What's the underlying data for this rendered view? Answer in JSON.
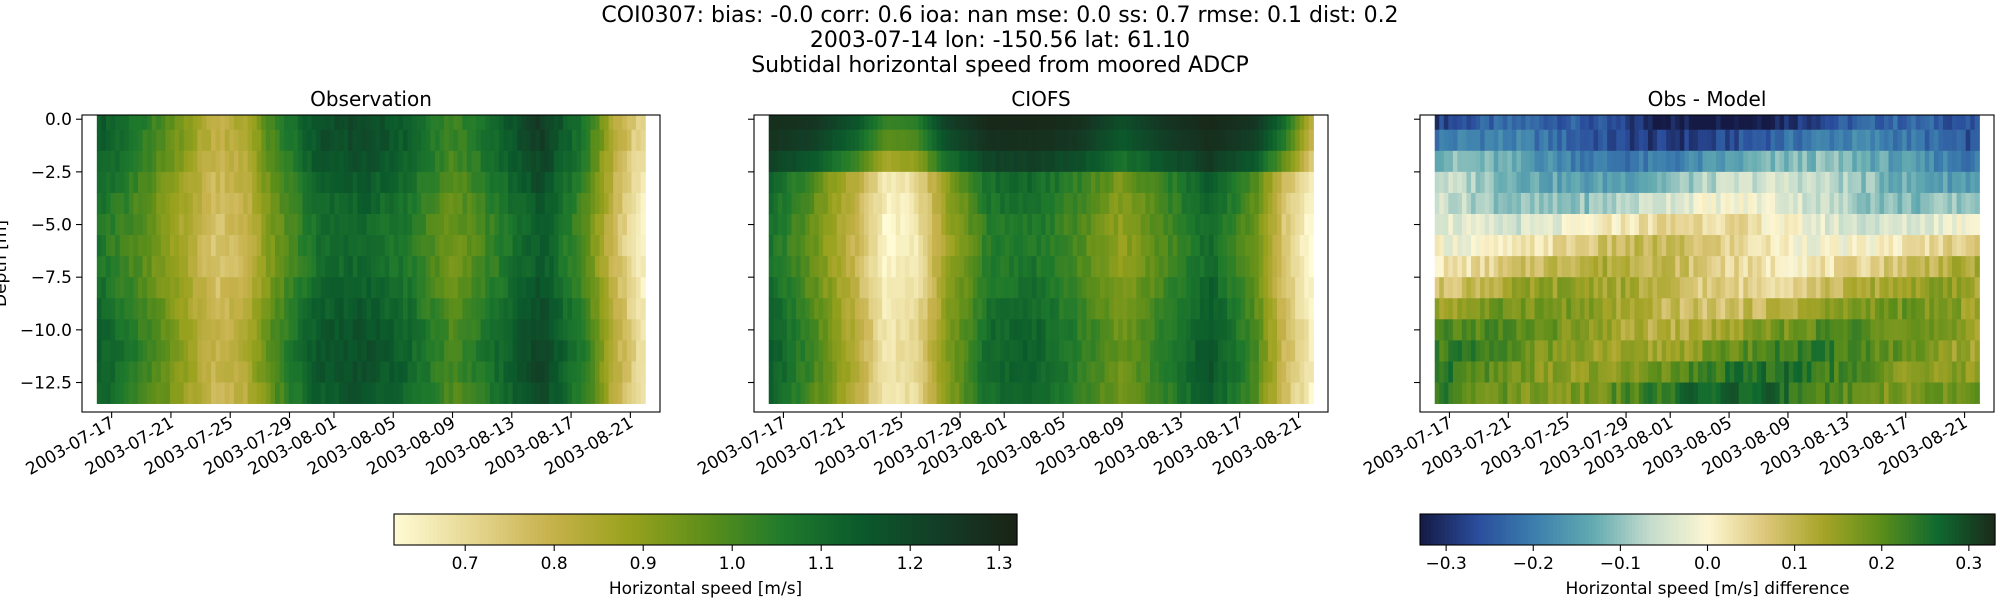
{
  "header": {
    "line1": "COI0307: bias: -0.0  corr: 0.6  ioa: nan  mse: 0.0  ss: 0.7  rmse: 0.1  dist: 0.2",
    "line2": "2003-07-14 lon: -150.56 lat: 61.10",
    "line3": "Subtidal horizontal speed from moored ADCP"
  },
  "colors": {
    "speed_cmap": [
      "#fffbd5",
      "#e6d792",
      "#c7b24c",
      "#9aa21e",
      "#5d8e1a",
      "#1f7a2c",
      "#0b5a2c",
      "#133d26",
      "#1a2316"
    ],
    "diff_cmap": [
      "#151a44",
      "#2a4d9c",
      "#3c7fae",
      "#62aab0",
      "#c4dccd",
      "#fdf6d2",
      "#dcc77a",
      "#a7a528",
      "#5d8e1a",
      "#0f6a30",
      "#1b2a1a"
    ]
  },
  "chart_data": [
    {
      "type": "heatmap",
      "title": "Observation",
      "ylabel": "Depth [m]",
      "x_start": "2003-07-15",
      "x_end": "2003-08-23",
      "ylim": [
        -13.9,
        0.2
      ],
      "yticks": [
        0.0,
        -2.5,
        -5.0,
        -7.5,
        -10.0,
        -12.5
      ],
      "ytick_labels": [
        "0.0",
        "−2.5",
        "−5.0",
        "−7.5",
        "−10.0",
        "−12.5"
      ],
      "xtick_labels": [
        "2003-07-17",
        "2003-07-21",
        "2003-07-25",
        "2003-07-29",
        "2003-08-01",
        "2003-08-05",
        "2003-08-09",
        "2003-08-13",
        "2003-08-17",
        "2003-08-21"
      ],
      "xticks": [
        "2003-07-17",
        "2003-07-21",
        "2003-07-25",
        "2003-07-29",
        "2003-08-01",
        "2003-08-05",
        "2003-08-09",
        "2003-08-13",
        "2003-08-17",
        "2003-08-21"
      ],
      "data_start": "2003-07-16",
      "data_end": "2003-08-22",
      "depths": [
        0.0,
        -1.0,
        -2.0,
        -3.0,
        -4.0,
        -5.0,
        -6.0,
        -7.0,
        -8.0,
        -9.0,
        -10.0,
        -11.0,
        -12.0,
        -13.0
      ],
      "time_profile_dates": [
        "2003-07-16",
        "2003-07-19",
        "2003-07-22",
        "2003-07-24",
        "2003-07-26",
        "2003-07-28",
        "2003-07-31",
        "2003-08-03",
        "2003-08-06",
        "2003-08-09",
        "2003-08-12",
        "2003-08-15",
        "2003-08-18",
        "2003-08-20",
        "2003-08-22"
      ],
      "time_profile_values": [
        1.12,
        1.02,
        0.88,
        0.78,
        0.82,
        0.98,
        1.14,
        1.16,
        1.1,
        0.98,
        1.08,
        1.2,
        1.02,
        0.8,
        0.66
      ],
      "vmin": 0.62,
      "vmax": 1.32
    },
    {
      "type": "heatmap",
      "title": "CIOFS",
      "x_start": "2003-07-15",
      "x_end": "2003-08-23",
      "ylim": [
        -13.9,
        0.2
      ],
      "yticks": [
        0.0,
        -2.5,
        -5.0,
        -7.5,
        -10.0,
        -12.5
      ],
      "xtick_labels": [
        "2003-07-17",
        "2003-07-21",
        "2003-07-25",
        "2003-07-29",
        "2003-08-01",
        "2003-08-05",
        "2003-08-09",
        "2003-08-13",
        "2003-08-17",
        "2003-08-21"
      ],
      "xticks": [
        "2003-07-17",
        "2003-07-21",
        "2003-07-25",
        "2003-07-29",
        "2003-08-01",
        "2003-08-05",
        "2003-08-09",
        "2003-08-13",
        "2003-08-17",
        "2003-08-21"
      ],
      "data_start": "2003-07-16",
      "data_end": "2003-08-22",
      "depths": [
        0.0,
        -1.0,
        -2.0,
        -3.0,
        -4.0,
        -5.0,
        -6.0,
        -7.0,
        -8.0,
        -9.0,
        -10.0,
        -11.0,
        -12.0,
        -13.0
      ],
      "time_profile_dates": [
        "2003-07-16",
        "2003-07-19",
        "2003-07-22",
        "2003-07-24",
        "2003-07-26",
        "2003-07-28",
        "2003-07-31",
        "2003-08-03",
        "2003-08-06",
        "2003-08-09",
        "2003-08-12",
        "2003-08-15",
        "2003-08-18",
        "2003-08-20",
        "2003-08-22"
      ],
      "time_profile_values": [
        1.14,
        1.0,
        0.82,
        0.66,
        0.7,
        0.9,
        1.1,
        1.12,
        1.04,
        0.94,
        1.04,
        1.16,
        1.0,
        0.78,
        0.64
      ],
      "surface_values": [
        1.28,
        1.26,
        1.16,
        1.02,
        1.04,
        1.22,
        1.3,
        1.3,
        1.28,
        1.18,
        1.26,
        1.3,
        1.26,
        1.1,
        0.8
      ],
      "vmin": 0.62,
      "vmax": 1.32
    },
    {
      "type": "heatmap",
      "title": "Obs - Model",
      "x_start": "2003-07-15",
      "x_end": "2003-08-23",
      "ylim": [
        -13.9,
        0.2
      ],
      "yticks": [
        0.0,
        -2.5,
        -5.0,
        -7.5,
        -10.0,
        -12.5
      ],
      "xtick_labels": [
        "2003-07-17",
        "2003-07-21",
        "2003-07-25",
        "2003-07-29",
        "2003-08-01",
        "2003-08-05",
        "2003-08-09",
        "2003-08-13",
        "2003-08-17",
        "2003-08-21"
      ],
      "xticks": [
        "2003-07-17",
        "2003-07-21",
        "2003-07-25",
        "2003-07-29",
        "2003-08-01",
        "2003-08-05",
        "2003-08-09",
        "2003-08-13",
        "2003-08-17",
        "2003-08-21"
      ],
      "data_start": "2003-07-16",
      "data_end": "2003-08-22",
      "depths": [
        0.0,
        -1.0,
        -2.0,
        -3.0,
        -4.0,
        -5.0,
        -6.0,
        -7.0,
        -8.0,
        -9.0,
        -10.0,
        -11.0,
        -12.0,
        -13.0
      ],
      "depth_profile_values": [
        -0.28,
        -0.24,
        -0.16,
        -0.1,
        -0.06,
        0.0,
        0.04,
        0.07,
        0.1,
        0.13,
        0.16,
        0.18,
        0.2,
        0.22
      ],
      "vmin": -0.33,
      "vmax": 0.33
    }
  ],
  "colorbars": [
    {
      "label": "Horizontal speed [m/s]",
      "vmin": 0.62,
      "vmax": 1.32,
      "ticks": [
        0.7,
        0.8,
        0.9,
        1.0,
        1.1,
        1.2,
        1.3
      ],
      "tick_labels": [
        "0.7",
        "0.8",
        "0.9",
        "1.0",
        "1.1",
        "1.2",
        "1.3"
      ]
    },
    {
      "label": "Horizontal speed [m/s] difference",
      "vmin": -0.33,
      "vmax": 0.33,
      "ticks": [
        -0.3,
        -0.2,
        -0.1,
        0.0,
        0.1,
        0.2,
        0.3
      ],
      "tick_labels": [
        "−0.3",
        "−0.2",
        "−0.1",
        "0.0",
        "0.1",
        "0.2",
        "0.3"
      ]
    }
  ]
}
